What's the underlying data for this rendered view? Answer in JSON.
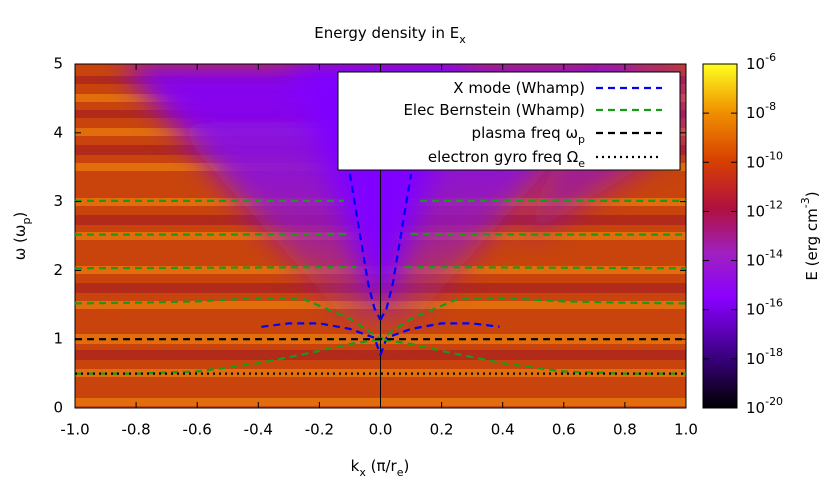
{
  "chart_data": {
    "type": "line",
    "title": [
      "Energy density in E",
      "x"
    ],
    "x_label": [
      "k",
      "x",
      " (π/r",
      "e",
      ")"
    ],
    "y_label": [
      "ω (ω",
      "p",
      ")"
    ],
    "xlim": [
      -1,
      1
    ],
    "ylim": [
      0,
      5
    ],
    "xticks": [
      {
        "value": -1,
        "label": "-1.0"
      },
      -0.8,
      -0.6,
      -0.4,
      -0.2,
      {
        "value": 0,
        "label": "0.0"
      },
      0.2,
      0.4,
      0.6,
      0.8,
      {
        "value": 1,
        "label": "1.0"
      }
    ],
    "yticks": [
      0,
      1,
      2,
      3,
      4,
      5
    ],
    "legend": "upper right",
    "series": [
      {
        "name": [
          "X mode (Whamp)"
        ],
        "color": "#0000ff",
        "dash": "dashed",
        "x": [
          -0.1,
          -0.07,
          -0.04,
          -0.02,
          0,
          null,
          0,
          0.02,
          0.04,
          0.07,
          0.1,
          null,
          -0.39,
          -0.3,
          -0.2,
          -0.1,
          -0.02,
          0,
          null,
          0,
          0.02,
          0.1,
          0.2,
          0.3,
          0.39
        ],
        "values": [
          3.4,
          2.6,
          1.8,
          1.45,
          1.28,
          null,
          1.28,
          1.45,
          1.8,
          2.6,
          3.4,
          null,
          1.18,
          1.23,
          1.23,
          1.15,
          1.02,
          0.77,
          null,
          0.77,
          1.02,
          1.15,
          1.23,
          1.23,
          1.18
        ]
      },
      {
        "name": [
          "Elec Bernstein (Whamp)"
        ],
        "color": "#1a9a1a",
        "dash": "dashed",
        "x": [
          -1,
          -0.8,
          -0.6,
          -0.4,
          -0.2,
          -0.1,
          0,
          0.1,
          0.2,
          0.4,
          0.6,
          0.8,
          1,
          null,
          -1,
          -0.8,
          -0.6,
          -0.4,
          -0.25,
          -0.1,
          0,
          0.1,
          0.25,
          0.4,
          0.6,
          0.8,
          1,
          null,
          -1,
          -0.5,
          -0.08,
          null,
          0.08,
          0.5,
          1,
          null,
          -1,
          -0.5,
          -0.1,
          null,
          0.1,
          0.5,
          1,
          null,
          -1,
          -0.5,
          -0.12,
          null,
          0.13,
          0.5,
          1
        ],
        "values": [
          0.5,
          0.5,
          0.53,
          0.65,
          0.83,
          0.93,
          1,
          0.93,
          0.83,
          0.65,
          0.53,
          0.5,
          0.5,
          null,
          1.52,
          1.53,
          1.55,
          1.6,
          1.58,
          1.3,
          1,
          1.3,
          1.58,
          1.6,
          1.55,
          1.53,
          1.52,
          null,
          2.03,
          2.04,
          2.05,
          null,
          2.05,
          2.04,
          2.03,
          null,
          2.52,
          2.52,
          2.53,
          null,
          2.53,
          2.52,
          2.52,
          null,
          3.01,
          3.01,
          3.01,
          null,
          3.01,
          3.01,
          3.01
        ]
      },
      {
        "name": [
          "plasma freq ω",
          "p"
        ],
        "color": "#000000",
        "dash": "dashed",
        "x": [
          -1,
          1
        ],
        "values": [
          1,
          1
        ]
      },
      {
        "name": [
          "electron gyro freq Ω",
          "e"
        ],
        "color": "#000000",
        "dash": "dotted",
        "x": [
          -1,
          1
        ],
        "values": [
          0.5,
          0.5
        ]
      }
    ],
    "colorbar": {
      "label": [
        "E (erg cm",
        "-3",
        ")"
      ],
      "lim": [
        1e-20,
        1e-06
      ],
      "log": true,
      "ticks": [
        {
          "value": 1e-06,
          "label": [
            "10",
            "-6"
          ]
        },
        {
          "value": 1e-08,
          "label": [
            "10",
            "-8"
          ]
        },
        {
          "value": 1e-10,
          "label": [
            "10",
            "-10"
          ]
        },
        {
          "value": 1e-12,
          "label": [
            "10",
            "-12"
          ]
        },
        {
          "value": 1e-14,
          "label": [
            "10",
            "-14"
          ]
        },
        {
          "value": 1e-16,
          "label": [
            "10",
            "-16"
          ]
        },
        {
          "value": 1e-18,
          "label": [
            "10",
            "-18"
          ]
        },
        {
          "value": 1e-20,
          "label": [
            "10",
            "-20"
          ]
        }
      ]
    }
  }
}
